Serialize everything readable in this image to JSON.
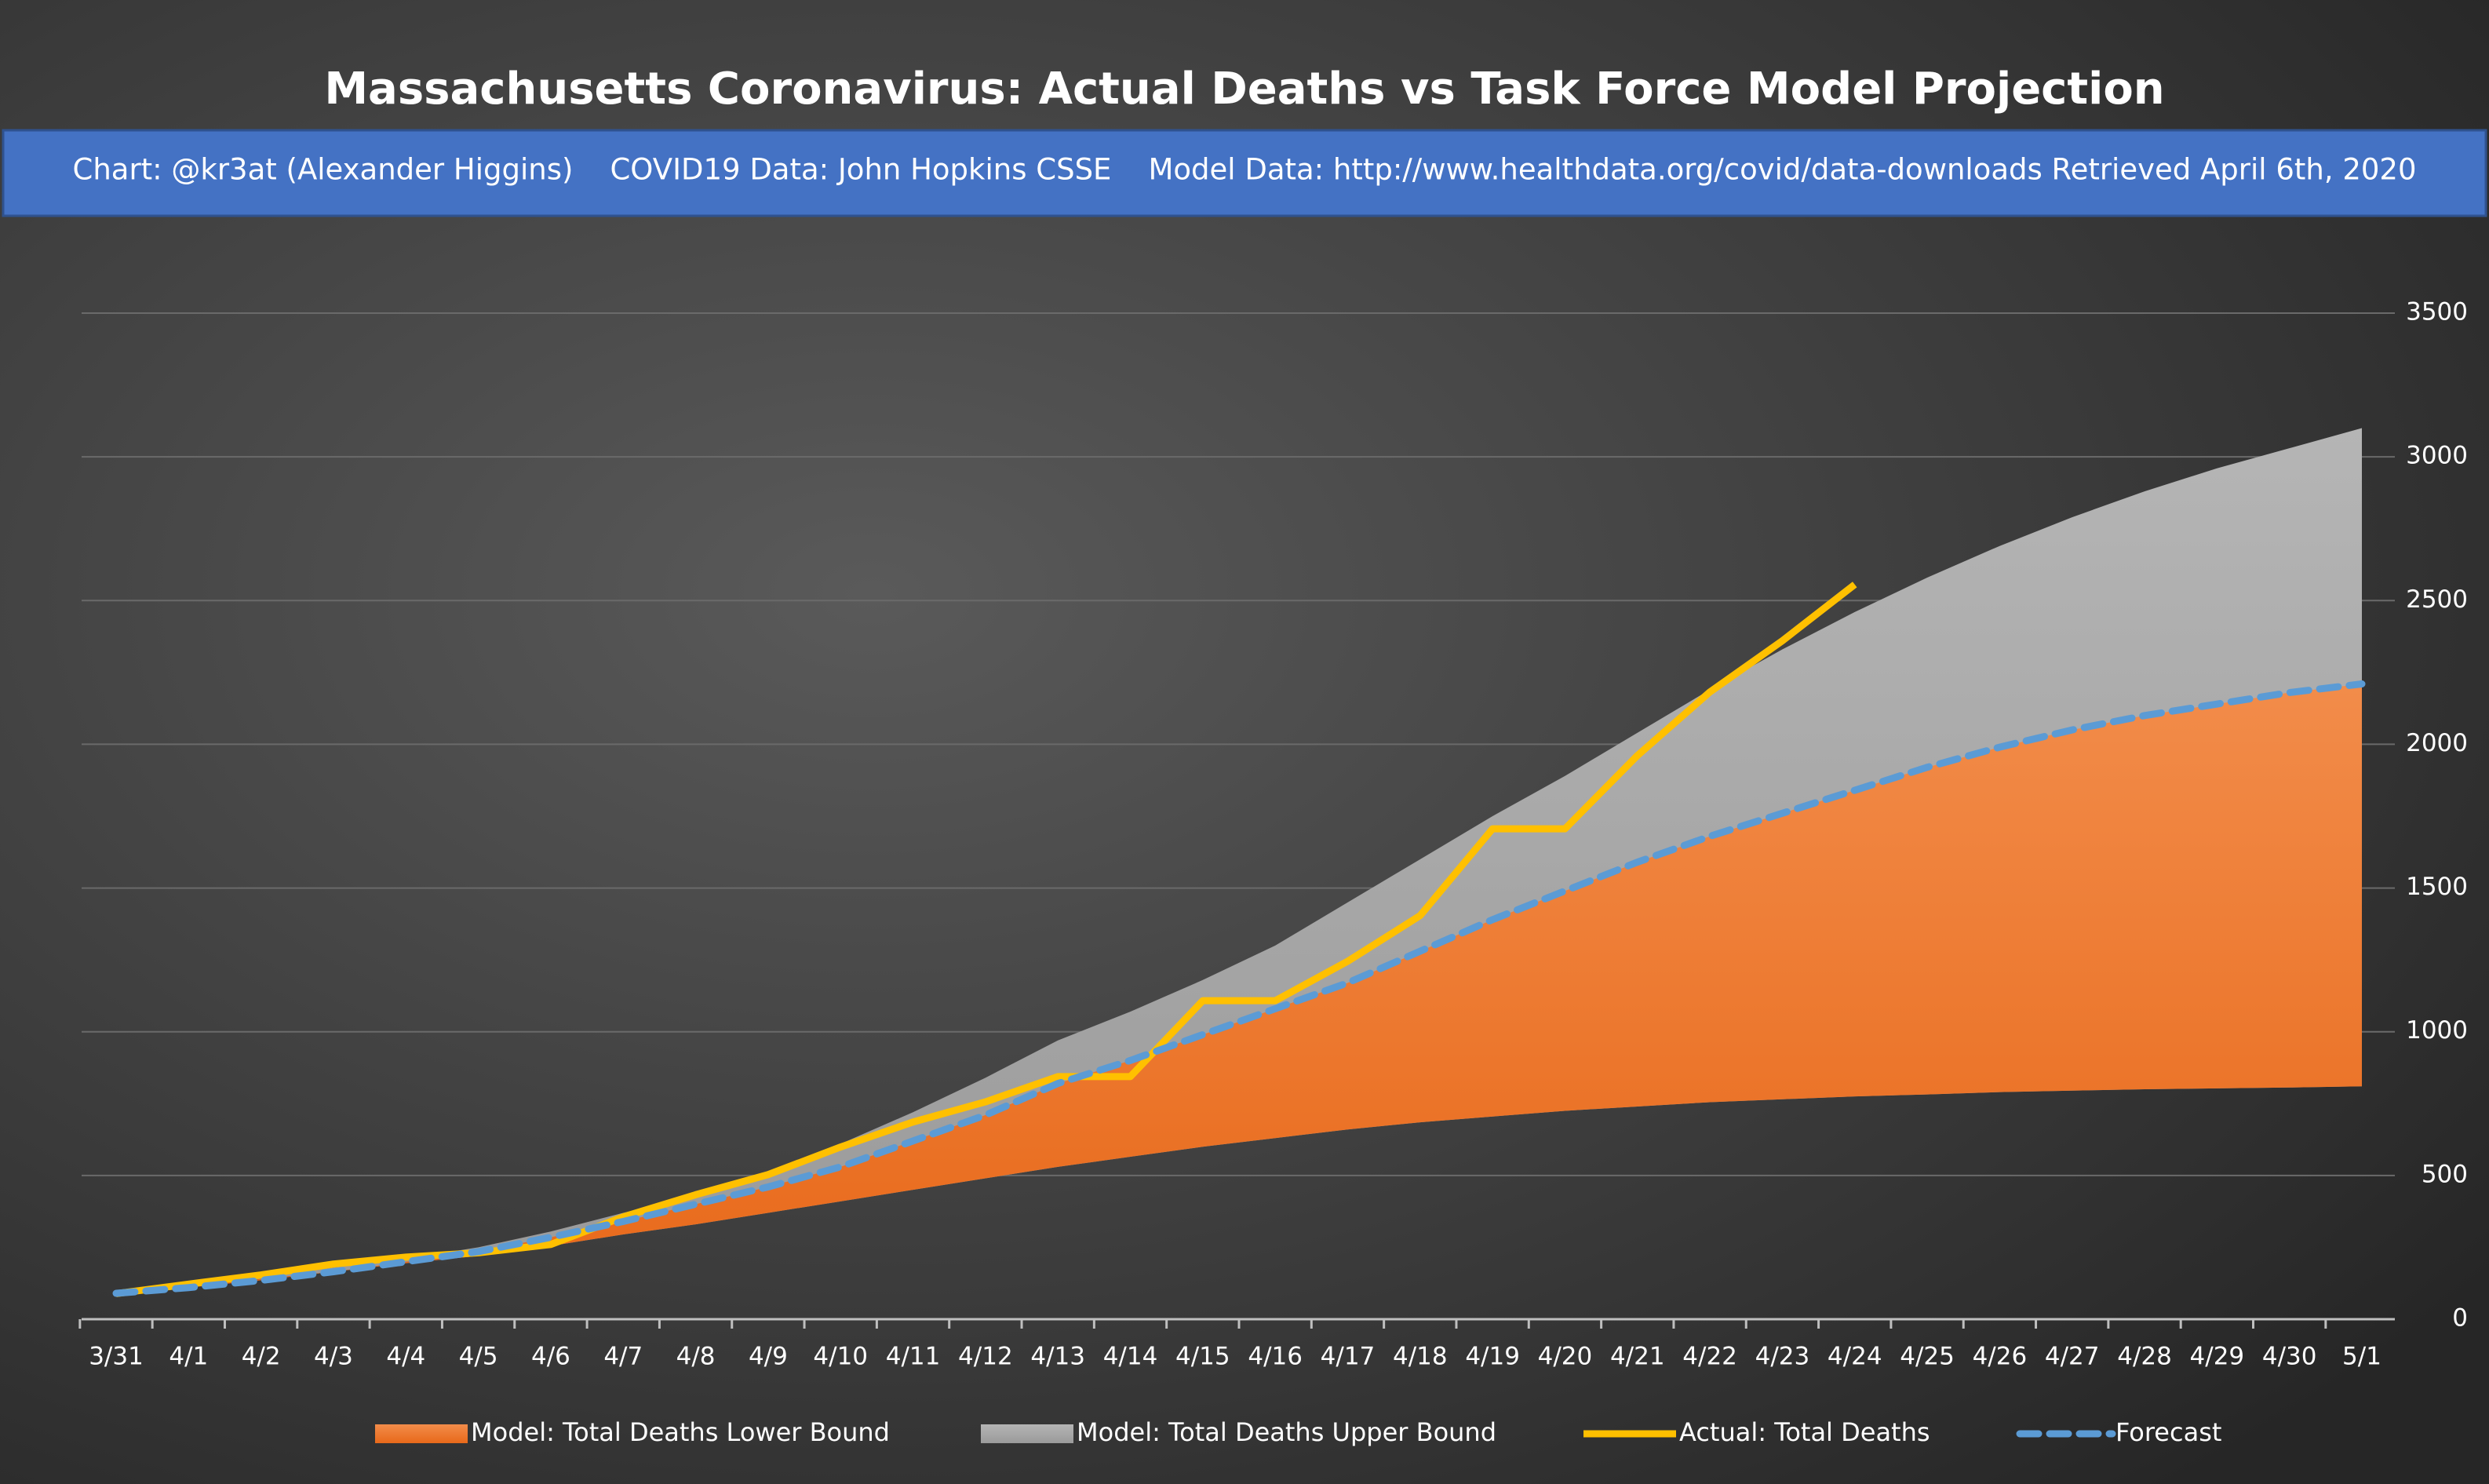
{
  "chart_data": {
    "type": "area",
    "title": "Massachusetts Coronavirus: Actual Deaths vs Task Force Model Projection",
    "subtitle": "Chart: @kr3at (Alexander Higgins)    COVID19 Data: John Hopkins CSSE    Model Data: http://www.healthdata.org/covid/data-downloads Retrieved April 6th, 2020",
    "categories": [
      "3/31",
      "4/1",
      "4/2",
      "4/3",
      "4/4",
      "4/5",
      "4/6",
      "4/7",
      "4/8",
      "4/9",
      "4/10",
      "4/11",
      "4/12",
      "4/13",
      "4/14",
      "4/15",
      "4/16",
      "4/17",
      "4/18",
      "4/19",
      "4/20",
      "4/21",
      "4/22",
      "4/23",
      "4/24",
      "4/25",
      "4/26",
      "4/27",
      "4/28",
      "4/29",
      "4/30",
      "5/1"
    ],
    "series": [
      {
        "name": "Model: Total Deaths Lower Bound",
        "color": "#ed7d31",
        "values": [
          90,
          115,
          140,
          165,
          195,
          220,
          255,
          295,
          330,
          370,
          410,
          450,
          490,
          530,
          565,
          600,
          630,
          660,
          685,
          705,
          725,
          740,
          755,
          765,
          775,
          782,
          790,
          795,
          800,
          803,
          806,
          810
        ]
      },
      {
        "name": "Model: Total Deaths Upper Bound",
        "color": "#a5a5a5",
        "values": [
          90,
          115,
          145,
          180,
          210,
          250,
          305,
          370,
          430,
          510,
          610,
          720,
          840,
          970,
          1070,
          1180,
          1300,
          1450,
          1600,
          1750,
          1890,
          2040,
          2190,
          2330,
          2460,
          2580,
          2690,
          2790,
          2880,
          2960,
          3030,
          3100
        ]
      },
      {
        "name": "Actual: Total Deaths",
        "color": "#ffc000",
        "values": [
          89,
          122,
          154,
          192,
          216,
          231,
          260,
          356,
          433,
          503,
          599,
          686,
          756,
          844,
          844,
          1108,
          1108,
          1245,
          1404,
          1706,
          1706,
          1961,
          2182,
          2360,
          2556,
          null,
          null,
          null,
          null,
          null,
          null,
          null
        ]
      },
      {
        "name": "Forecast",
        "color": "#5b9bd5",
        "values": [
          90,
          110,
          135,
          165,
          200,
          235,
          285,
          340,
          400,
          460,
          530,
          620,
          710,
          820,
          900,
          990,
          1080,
          1170,
          1280,
          1390,
          1490,
          1590,
          1680,
          1760,
          1840,
          1920,
          1990,
          2050,
          2100,
          2140,
          2180,
          2210
        ]
      }
    ],
    "ylim": [
      0,
      3500
    ],
    "yticks": [
      0,
      500,
      1000,
      1500,
      2000,
      2500,
      3000,
      3500
    ],
    "grid": true,
    "legend": "bottom"
  }
}
